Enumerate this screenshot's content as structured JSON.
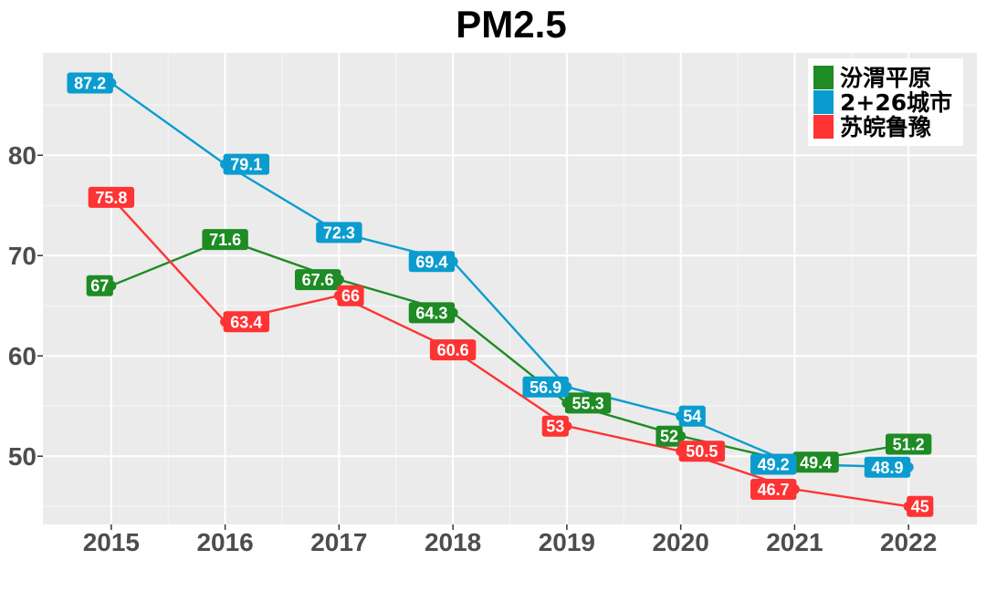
{
  "chart_data": {
    "type": "line",
    "title": "PM2.5",
    "xlabel": "",
    "ylabel": "",
    "categories": [
      "2015",
      "2016",
      "2017",
      "2018",
      "2019",
      "2020",
      "2021",
      "2022"
    ],
    "x_range": [
      2014.4,
      2022.6
    ],
    "ylim": [
      43.2,
      90.2
    ],
    "yticks": [
      50,
      60,
      70,
      80
    ],
    "grid": true,
    "legend_position": "top-right",
    "series": [
      {
        "name": "汾渭平原",
        "color": "#1e8b24",
        "values": [
          67,
          71.6,
          67.6,
          64.3,
          55.3,
          52,
          49.4,
          51.2
        ]
      },
      {
        "name": "2+26城市",
        "color": "#0b9ccf",
        "values": [
          87.2,
          79.1,
          72.3,
          69.4,
          56.9,
          54,
          49.2,
          48.9
        ]
      },
      {
        "name": "苏皖鲁豫",
        "color": "#fe3333",
        "values": [
          75.8,
          63.4,
          66,
          60.6,
          53,
          50.5,
          46.7,
          45
        ]
      }
    ]
  }
}
